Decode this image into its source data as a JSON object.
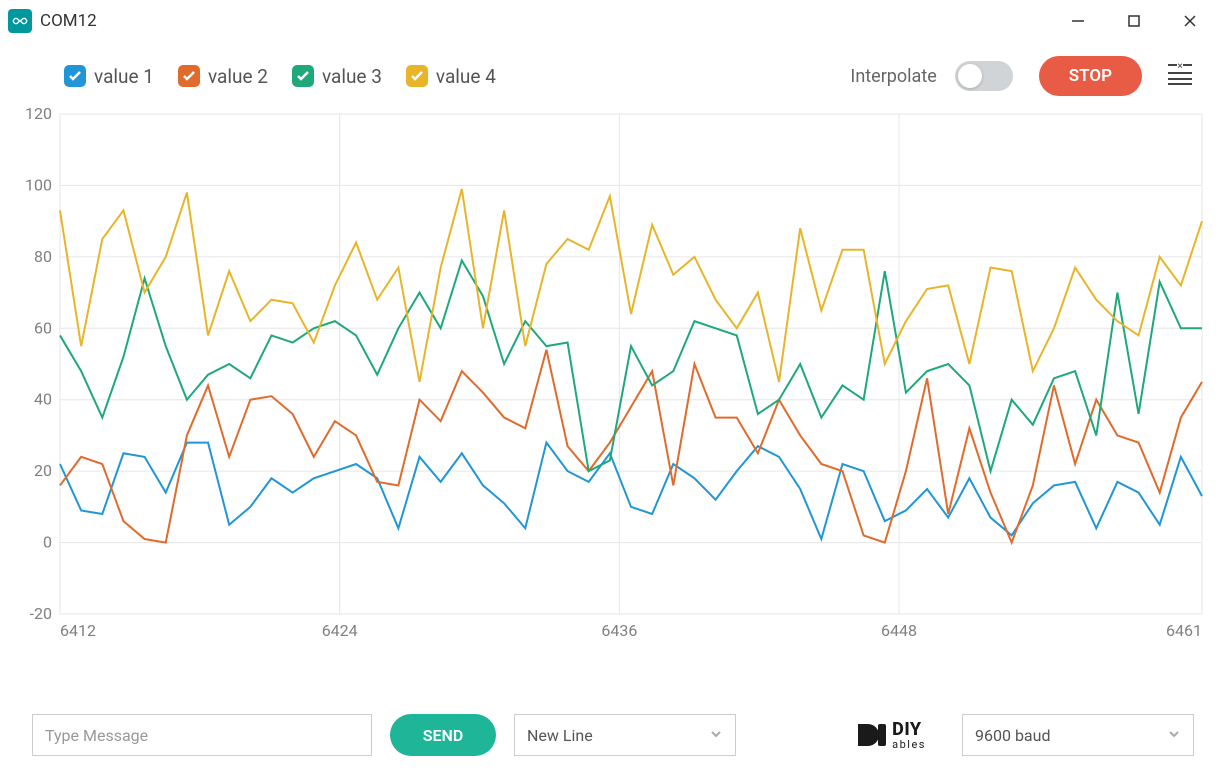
{
  "window": {
    "title": "COM12",
    "icon_bg": "#00979d"
  },
  "legend": {
    "items": [
      {
        "label": "value 1",
        "color": "#2196d6",
        "checked": true
      },
      {
        "label": "value 2",
        "color": "#e06b2c",
        "checked": true
      },
      {
        "label": "value 3",
        "color": "#1fa87a",
        "checked": true
      },
      {
        "label": "value 4",
        "color": "#e8b52a",
        "checked": true
      }
    ]
  },
  "controls": {
    "interpolate_label": "Interpolate",
    "interpolate_on": false,
    "stop_label": "STOP",
    "stop_bg": "#e85b44"
  },
  "chart": {
    "type": "line",
    "xrange": [
      6412,
      6461
    ],
    "xticks": [
      6412,
      6424,
      6436,
      6448,
      6461
    ],
    "yrange": [
      -20,
      120
    ],
    "yticks": [
      -20,
      0,
      20,
      40,
      60,
      80,
      100,
      120
    ],
    "grid_color": "#e6e6e6",
    "axis_font": 16,
    "axis_color": "#808080",
    "background": "#ffffff",
    "line_width": 2,
    "series": [
      {
        "name": "value 1",
        "color": "#2196d6",
        "y": [
          22,
          9,
          8,
          25,
          24,
          14,
          28,
          28,
          5,
          10,
          18,
          14,
          18,
          20,
          22,
          18,
          4,
          24,
          17,
          25,
          16,
          11,
          4,
          28,
          20,
          17,
          25,
          10,
          8,
          22,
          18,
          12,
          20,
          27,
          24,
          15,
          1,
          22,
          20,
          6,
          9,
          15,
          7,
          18,
          7,
          2,
          11,
          16,
          17,
          4,
          17,
          14,
          5,
          24,
          13
        ]
      },
      {
        "name": "value 2",
        "color": "#e06b2c",
        "y": [
          16,
          24,
          22,
          6,
          1,
          0,
          30,
          44,
          24,
          40,
          41,
          36,
          24,
          34,
          30,
          17,
          16,
          40,
          34,
          48,
          42,
          35,
          32,
          54,
          27,
          20,
          28,
          38,
          48,
          16,
          50,
          35,
          35,
          25,
          40,
          30,
          22,
          20,
          2,
          0,
          20,
          46,
          8,
          32,
          14,
          0,
          16,
          44,
          22,
          40,
          30,
          28,
          14,
          35,
          45
        ]
      },
      {
        "name": "value 3",
        "color": "#1fa87a",
        "y": [
          58,
          48,
          35,
          52,
          74,
          55,
          40,
          47,
          50,
          46,
          58,
          56,
          60,
          62,
          58,
          47,
          60,
          70,
          60,
          79,
          69,
          50,
          62,
          55,
          56,
          20,
          23,
          55,
          44,
          48,
          62,
          60,
          58,
          36,
          40,
          50,
          35,
          44,
          40,
          76,
          42,
          48,
          50,
          44,
          20,
          40,
          33,
          46,
          48,
          30,
          70,
          36,
          73,
          60,
          60
        ]
      },
      {
        "name": "value 4",
        "color": "#e8b52a",
        "y": [
          93,
          55,
          85,
          93,
          70,
          80,
          98,
          58,
          76,
          62,
          68,
          67,
          56,
          72,
          84,
          68,
          77,
          45,
          77,
          99,
          60,
          93,
          55,
          78,
          85,
          82,
          97,
          64,
          89,
          75,
          80,
          68,
          60,
          70,
          45,
          88,
          65,
          82,
          82,
          50,
          62,
          71,
          72,
          50,
          77,
          76,
          48,
          60,
          77,
          68,
          62,
          58,
          80,
          72,
          90
        ]
      }
    ]
  },
  "footer": {
    "message_placeholder": "Type Message",
    "send_label": "SEND",
    "send_bg": "#1fb598",
    "line_ending": "New Line",
    "baud": "9600 baud",
    "logo_top": "DIY",
    "logo_sub": "ables"
  }
}
